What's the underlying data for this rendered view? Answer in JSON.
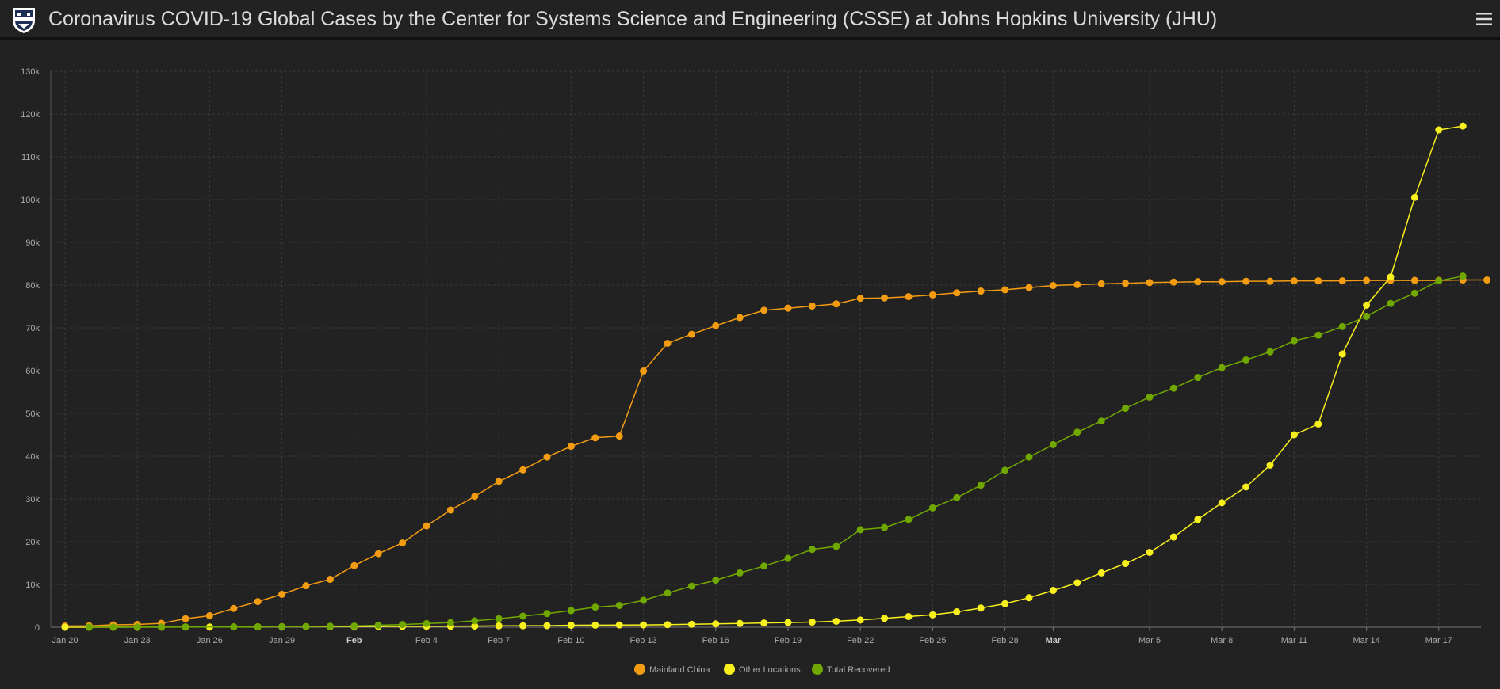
{
  "header": {
    "title": "Coronavirus COVID-19 Global Cases by the Center for Systems Science and Engineering (CSSE) at Johns Hopkins University (JHU)",
    "logo_icon": "jhu-shield-icon",
    "menu_icon": "hamburger-menu-icon"
  },
  "colors": {
    "background": "#222222",
    "mainland_china": "#f39c12",
    "other_locations": "#f7f01c",
    "total_recovered": "#70a800",
    "grid": "#3a3a3a",
    "axis_text": "#aaaaaa"
  },
  "chart_data": {
    "type": "line",
    "title": "",
    "xlabel": "",
    "ylabel": "",
    "ylim": [
      0,
      130000
    ],
    "y_ticks": [
      0,
      10000,
      20000,
      30000,
      40000,
      50000,
      60000,
      70000,
      80000,
      90000,
      100000,
      110000,
      120000,
      130000
    ],
    "y_tick_labels": [
      "0",
      "10k",
      "20k",
      "30k",
      "40k",
      "50k",
      "60k",
      "70k",
      "80k",
      "90k",
      "100k",
      "110k",
      "120k",
      "130k"
    ],
    "x_start": "2020-01-20",
    "x_ticks": [
      {
        "label": "Jan 20",
        "date": "2020-01-20",
        "bold": false
      },
      {
        "label": "Jan 23",
        "date": "2020-01-23",
        "bold": false
      },
      {
        "label": "Jan 26",
        "date": "2020-01-26",
        "bold": false
      },
      {
        "label": "Jan 29",
        "date": "2020-01-29",
        "bold": false
      },
      {
        "label": "Feb",
        "date": "2020-02-01",
        "bold": true
      },
      {
        "label": "Feb 4",
        "date": "2020-02-04",
        "bold": false
      },
      {
        "label": "Feb 7",
        "date": "2020-02-07",
        "bold": false
      },
      {
        "label": "Feb 10",
        "date": "2020-02-10",
        "bold": false
      },
      {
        "label": "Feb 13",
        "date": "2020-02-13",
        "bold": false
      },
      {
        "label": "Feb 16",
        "date": "2020-02-16",
        "bold": false
      },
      {
        "label": "Feb 19",
        "date": "2020-02-19",
        "bold": false
      },
      {
        "label": "Feb 22",
        "date": "2020-02-22",
        "bold": false
      },
      {
        "label": "Feb 25",
        "date": "2020-02-25",
        "bold": false
      },
      {
        "label": "Feb 28",
        "date": "2020-02-28",
        "bold": false
      },
      {
        "label": "Mar",
        "date": "2020-03-01",
        "bold": true
      },
      {
        "label": "Mar 5",
        "date": "2020-03-05",
        "bold": false
      },
      {
        "label": "Mar 8",
        "date": "2020-03-08",
        "bold": false
      },
      {
        "label": "Mar 11",
        "date": "2020-03-11",
        "bold": false
      },
      {
        "label": "Mar 14",
        "date": "2020-03-14",
        "bold": false
      },
      {
        "label": "Mar 17",
        "date": "2020-03-17",
        "bold": false
      }
    ],
    "grid": true,
    "legend_position": "bottom-center",
    "series": [
      {
        "name": "Mainland China",
        "color": "#f39c12",
        "points": [
          [
            "2020-01-20",
            278
          ],
          [
            "2020-01-21",
            326
          ],
          [
            "2020-01-22",
            547
          ],
          [
            "2020-01-23",
            639
          ],
          [
            "2020-01-24",
            916
          ],
          [
            "2020-01-25",
            2000
          ],
          [
            "2020-01-26",
            2700
          ],
          [
            "2020-01-27",
            4400
          ],
          [
            "2020-01-28",
            6000
          ],
          [
            "2020-01-29",
            7700
          ],
          [
            "2020-01-30",
            9700
          ],
          [
            "2020-01-31",
            11200
          ],
          [
            "2020-02-01",
            14400
          ],
          [
            "2020-02-02",
            17200
          ],
          [
            "2020-02-03",
            19700
          ],
          [
            "2020-02-04",
            23700
          ],
          [
            "2020-02-05",
            27400
          ],
          [
            "2020-02-06",
            30600
          ],
          [
            "2020-02-07",
            34100
          ],
          [
            "2020-02-08",
            36800
          ],
          [
            "2020-02-09",
            39800
          ],
          [
            "2020-02-10",
            42300
          ],
          [
            "2020-02-11",
            44300
          ],
          [
            "2020-02-12",
            44700
          ],
          [
            "2020-02-13",
            59900
          ],
          [
            "2020-02-14",
            66400
          ],
          [
            "2020-02-15",
            68500
          ],
          [
            "2020-02-16",
            70500
          ],
          [
            "2020-02-17",
            72400
          ],
          [
            "2020-02-18",
            74100
          ],
          [
            "2020-02-19",
            74600
          ],
          [
            "2020-02-20",
            75100
          ],
          [
            "2020-02-21",
            75600
          ],
          [
            "2020-02-22",
            76900
          ],
          [
            "2020-02-23",
            77000
          ],
          [
            "2020-02-24",
            77300
          ],
          [
            "2020-02-25",
            77700
          ],
          [
            "2020-02-26",
            78200
          ],
          [
            "2020-02-27",
            78600
          ],
          [
            "2020-02-28",
            78900
          ],
          [
            "2020-02-29",
            79400
          ],
          [
            "2020-03-01",
            79900
          ],
          [
            "2020-03-02",
            80100
          ],
          [
            "2020-03-03",
            80300
          ],
          [
            "2020-03-04",
            80400
          ],
          [
            "2020-03-05",
            80600
          ],
          [
            "2020-03-06",
            80700
          ],
          [
            "2020-03-07",
            80800
          ],
          [
            "2020-03-08",
            80800
          ],
          [
            "2020-03-09",
            80900
          ],
          [
            "2020-03-10",
            80900
          ],
          [
            "2020-03-11",
            81000
          ],
          [
            "2020-03-12",
            81000
          ],
          [
            "2020-03-13",
            81000
          ],
          [
            "2020-03-14",
            81100
          ],
          [
            "2020-03-15",
            81100
          ],
          [
            "2020-03-16",
            81100
          ],
          [
            "2020-03-17",
            81100
          ],
          [
            "2020-03-18",
            81200
          ],
          [
            "2020-03-19",
            81200
          ]
        ]
      },
      {
        "name": "Other Locations",
        "color": "#f7f01c",
        "points": [
          [
            "2020-01-20",
            4
          ],
          [
            "2020-01-21",
            6
          ],
          [
            "2020-01-22",
            8
          ],
          [
            "2020-01-23",
            14
          ],
          [
            "2020-01-24",
            25
          ],
          [
            "2020-01-25",
            40
          ],
          [
            "2020-01-26",
            57
          ],
          [
            "2020-01-27",
            64
          ],
          [
            "2020-01-28",
            87
          ],
          [
            "2020-01-29",
            105
          ],
          [
            "2020-01-30",
            118
          ],
          [
            "2020-01-31",
            153
          ],
          [
            "2020-02-01",
            173
          ],
          [
            "2020-02-02",
            183
          ],
          [
            "2020-02-03",
            188
          ],
          [
            "2020-02-04",
            212
          ],
          [
            "2020-02-05",
            227
          ],
          [
            "2020-02-06",
            265
          ],
          [
            "2020-02-07",
            317
          ],
          [
            "2020-02-08",
            343
          ],
          [
            "2020-02-09",
            361
          ],
          [
            "2020-02-10",
            457
          ],
          [
            "2020-02-11",
            476
          ],
          [
            "2020-02-12",
            523
          ],
          [
            "2020-02-13",
            538
          ],
          [
            "2020-02-14",
            595
          ],
          [
            "2020-02-15",
            685
          ],
          [
            "2020-02-16",
            780
          ],
          [
            "2020-02-17",
            896
          ],
          [
            "2020-02-18",
            999
          ],
          [
            "2020-02-19",
            1100
          ],
          [
            "2020-02-20",
            1200
          ],
          [
            "2020-02-21",
            1400
          ],
          [
            "2020-02-22",
            1700
          ],
          [
            "2020-02-23",
            2100
          ],
          [
            "2020-02-24",
            2500
          ],
          [
            "2020-02-25",
            2900
          ],
          [
            "2020-02-26",
            3600
          ],
          [
            "2020-02-27",
            4500
          ],
          [
            "2020-02-28",
            5500
          ],
          [
            "2020-02-29",
            6900
          ],
          [
            "2020-03-01",
            8600
          ],
          [
            "2020-03-02",
            10400
          ],
          [
            "2020-03-03",
            12700
          ],
          [
            "2020-03-04",
            14900
          ],
          [
            "2020-03-05",
            17500
          ],
          [
            "2020-03-06",
            21100
          ],
          [
            "2020-03-07",
            25200
          ],
          [
            "2020-03-08",
            29100
          ],
          [
            "2020-03-09",
            32800
          ],
          [
            "2020-03-10",
            37900
          ],
          [
            "2020-03-11",
            45000
          ],
          [
            "2020-03-12",
            47500
          ],
          [
            "2020-03-13",
            63900
          ],
          [
            "2020-03-14",
            75300
          ],
          [
            "2020-03-15",
            81900
          ],
          [
            "2020-03-16",
            100500
          ],
          [
            "2020-03-17",
            116300
          ],
          [
            "2020-03-18",
            117200
          ]
        ]
      },
      {
        "name": "Total Recovered",
        "color": "#70a800",
        "points": [
          [
            "2020-01-21",
            28
          ],
          [
            "2020-01-22",
            30
          ],
          [
            "2020-01-23",
            36
          ],
          [
            "2020-01-24",
            39
          ],
          [
            "2020-01-25",
            52
          ],
          [
            "2020-01-27",
            61
          ],
          [
            "2020-01-28",
            107
          ],
          [
            "2020-01-29",
            126
          ],
          [
            "2020-01-30",
            143
          ],
          [
            "2020-01-31",
            222
          ],
          [
            "2020-02-01",
            284
          ],
          [
            "2020-02-02",
            472
          ],
          [
            "2020-02-03",
            623
          ],
          [
            "2020-02-04",
            852
          ],
          [
            "2020-02-05",
            1100
          ],
          [
            "2020-02-06",
            1500
          ],
          [
            "2020-02-07",
            2000
          ],
          [
            "2020-02-08",
            2600
          ],
          [
            "2020-02-09",
            3200
          ],
          [
            "2020-02-10",
            3900
          ],
          [
            "2020-02-11",
            4700
          ],
          [
            "2020-02-12",
            5100
          ],
          [
            "2020-02-13",
            6300
          ],
          [
            "2020-02-14",
            8000
          ],
          [
            "2020-02-15",
            9600
          ],
          [
            "2020-02-16",
            11000
          ],
          [
            "2020-02-17",
            12700
          ],
          [
            "2020-02-18",
            14300
          ],
          [
            "2020-02-19",
            16100
          ],
          [
            "2020-02-20",
            18200
          ],
          [
            "2020-02-21",
            18900
          ],
          [
            "2020-02-22",
            22800
          ],
          [
            "2020-02-23",
            23300
          ],
          [
            "2020-02-24",
            25200
          ],
          [
            "2020-02-25",
            27900
          ],
          [
            "2020-02-26",
            30300
          ],
          [
            "2020-02-27",
            33200
          ],
          [
            "2020-02-28",
            36700
          ],
          [
            "2020-02-29",
            39800
          ],
          [
            "2020-03-01",
            42700
          ],
          [
            "2020-03-02",
            45600
          ],
          [
            "2020-03-03",
            48200
          ],
          [
            "2020-03-04",
            51200
          ],
          [
            "2020-03-05",
            53800
          ],
          [
            "2020-03-06",
            55900
          ],
          [
            "2020-03-07",
            58400
          ],
          [
            "2020-03-08",
            60700
          ],
          [
            "2020-03-09",
            62500
          ],
          [
            "2020-03-10",
            64400
          ],
          [
            "2020-03-11",
            67000
          ],
          [
            "2020-03-12",
            68300
          ],
          [
            "2020-03-13",
            70300
          ],
          [
            "2020-03-14",
            72700
          ],
          [
            "2020-03-15",
            75700
          ],
          [
            "2020-03-16",
            78100
          ],
          [
            "2020-03-17",
            81000
          ],
          [
            "2020-03-18",
            82100
          ]
        ]
      }
    ]
  }
}
